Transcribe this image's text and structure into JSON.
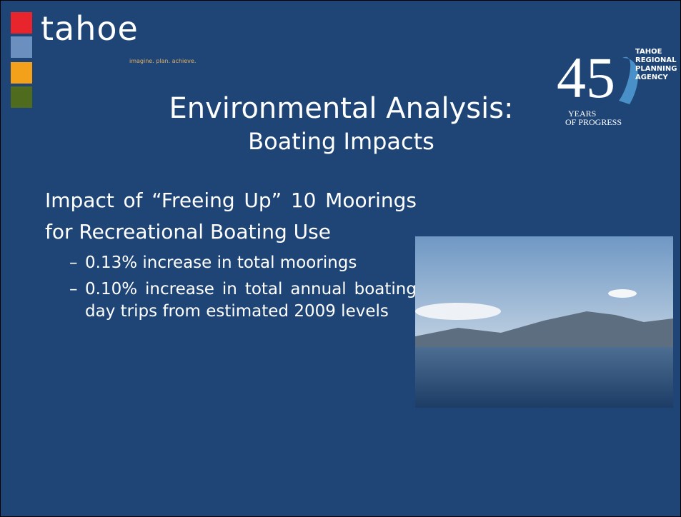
{
  "header": {
    "logo": "tahoe",
    "tagline": "imagine. plan. achieve.",
    "title": "Environmental Analysis:",
    "subtitle": "Boating Impacts",
    "badge": {
      "number": "45",
      "agency": [
        "TAHOE",
        "REGIONAL",
        "PLANNING",
        "AGENCY"
      ],
      "years": "YEARS",
      "progress": "OF PROGRESS"
    }
  },
  "content": {
    "heading": "Impact of “Freeing Up” 10 Moorings for Recreational Boating Use",
    "bullets": [
      "0.13% increase in total moorings",
      "0.10% increase in total annual boating day trips from estimated 2009 levels"
    ]
  }
}
